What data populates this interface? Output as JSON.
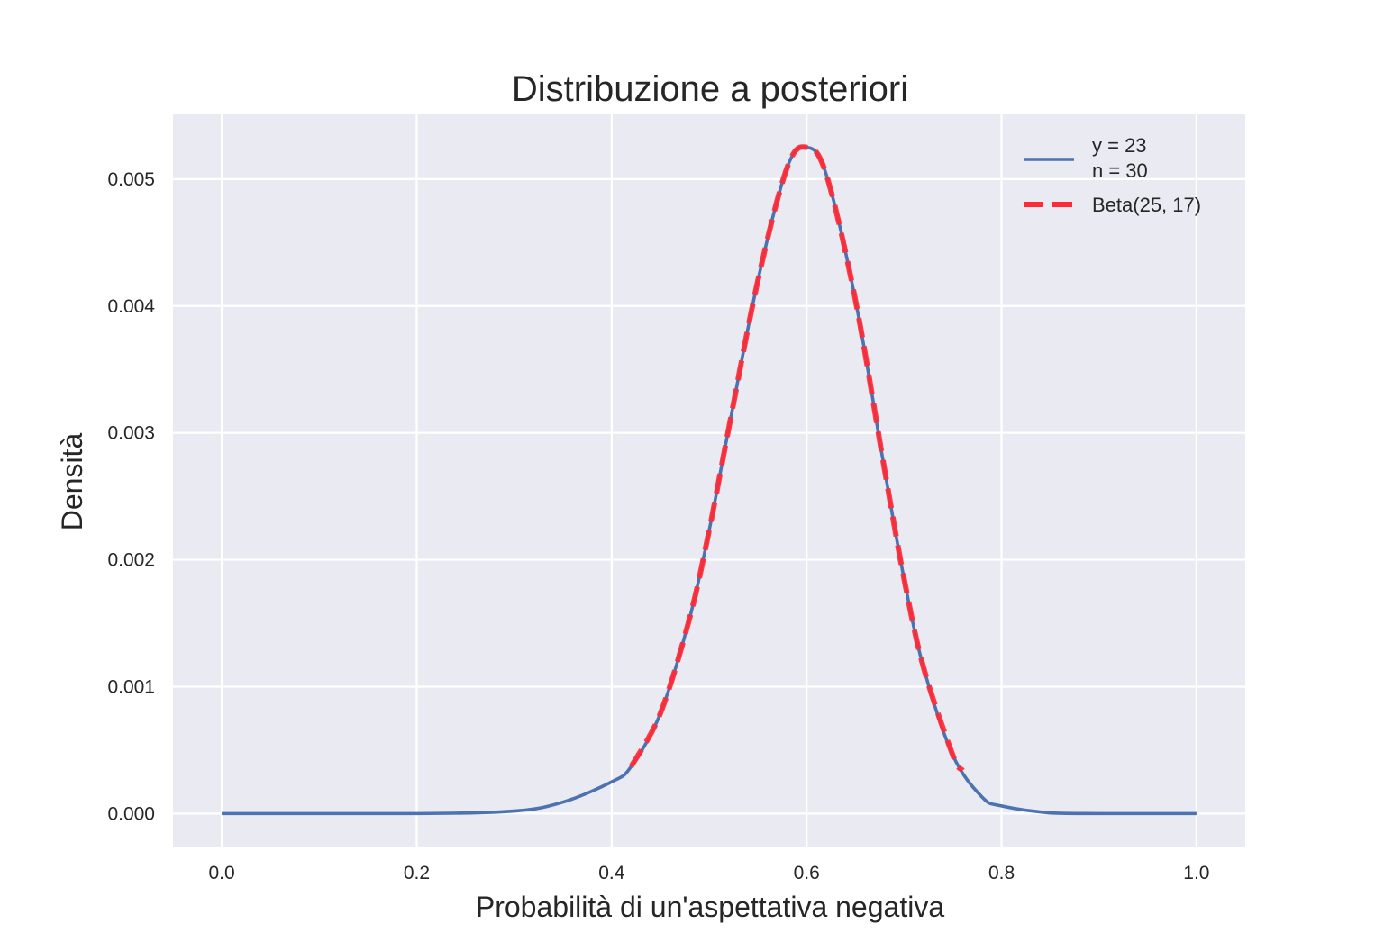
{
  "chart_data": {
    "type": "line",
    "title": "Distribuzione a posteriori",
    "xlabel": "Probabilità di un'aspettativa negativa",
    "ylabel": "Densità",
    "xlim": [
      -0.05,
      1.05
    ],
    "ylim": [
      -0.00026,
      0.00551
    ],
    "xticks": [
      "0.0",
      "0.2",
      "0.4",
      "0.6",
      "0.8",
      "1.0"
    ],
    "yticks": [
      "0.000",
      "0.001",
      "0.002",
      "0.003",
      "0.004",
      "0.005"
    ],
    "grid": true,
    "legend_position": "top-right",
    "series": [
      {
        "name": "y = 23\nn = 30",
        "name_lines": [
          "y = 23",
          "n = 30"
        ],
        "style": "solid",
        "color": "#4c72b0",
        "x": [
          0.0,
          0.2,
          0.3,
          0.35,
          0.4,
          0.42,
          0.45,
          0.48,
          0.5,
          0.52,
          0.55,
          0.58,
          0.6,
          0.62,
          0.65,
          0.68,
          0.7,
          0.72,
          0.75,
          0.78,
          0.8,
          0.85,
          0.9,
          1.0
        ],
        "y": [
          0.0,
          0.0,
          2e-05,
          9e-05,
          0.00025,
          0.00037,
          0.00079,
          0.00154,
          0.00223,
          0.00303,
          0.0042,
          0.00509,
          0.00525,
          0.00504,
          0.00405,
          0.00271,
          0.00185,
          0.00115,
          0.00046,
          0.00013,
          6e-05,
          5e-06,
          0.0,
          0.0
        ]
      },
      {
        "name": "Beta(25, 17)",
        "style": "dashed",
        "color": "#ff2a35",
        "x": [
          0.42,
          0.45,
          0.48,
          0.5,
          0.52,
          0.55,
          0.58,
          0.6,
          0.62,
          0.65,
          0.68,
          0.7,
          0.72,
          0.75,
          0.76
        ],
        "y": [
          0.00037,
          0.00079,
          0.00154,
          0.00223,
          0.00303,
          0.0042,
          0.00509,
          0.00525,
          0.00504,
          0.00405,
          0.00271,
          0.00185,
          0.00115,
          0.00046,
          0.00034
        ]
      }
    ]
  }
}
